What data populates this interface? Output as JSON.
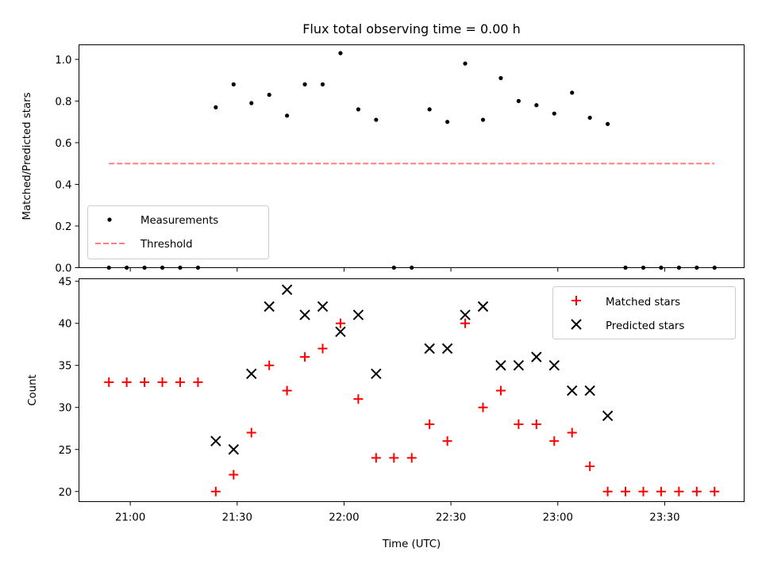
{
  "chart_data": [
    {
      "type": "scatter",
      "title": "Flux total observing time = 0.00 h",
      "xlabel": "",
      "ylabel": "Matched/Predicted stars",
      "ylim": [
        0,
        1.07
      ],
      "yticks": [
        "0.0",
        "0.2",
        "0.4",
        "0.6",
        "0.8",
        "1.0"
      ],
      "grid": false,
      "legend_position": "lower-left",
      "series": [
        {
          "name": "Measurements",
          "marker": "dot",
          "color": "#000000",
          "points": [
            [
              "20:54",
              0.0
            ],
            [
              "20:59",
              0.0
            ],
            [
              "21:04",
              0.0
            ],
            [
              "21:09",
              0.0
            ],
            [
              "21:14",
              0.0
            ],
            [
              "21:19",
              0.0
            ],
            [
              "21:24",
              0.77
            ],
            [
              "21:29",
              0.88
            ],
            [
              "21:34",
              0.79
            ],
            [
              "21:39",
              0.83
            ],
            [
              "21:44",
              0.73
            ],
            [
              "21:49",
              0.88
            ],
            [
              "21:54",
              0.88
            ],
            [
              "21:59",
              1.03
            ],
            [
              "22:04",
              0.76
            ],
            [
              "22:09",
              0.71
            ],
            [
              "22:14",
              0.0
            ],
            [
              "22:19",
              0.0
            ],
            [
              "22:24",
              0.76
            ],
            [
              "22:29",
              0.7
            ],
            [
              "22:34",
              0.98
            ],
            [
              "22:39",
              0.71
            ],
            [
              "22:44",
              0.91
            ],
            [
              "22:49",
              0.8
            ],
            [
              "22:54",
              0.78
            ],
            [
              "22:59",
              0.74
            ],
            [
              "23:04",
              0.84
            ],
            [
              "23:09",
              0.72
            ],
            [
              "23:14",
              0.69
            ],
            [
              "23:19",
              0.0
            ],
            [
              "23:24",
              0.0
            ],
            [
              "23:29",
              0.0
            ],
            [
              "23:34",
              0.0
            ],
            [
              "23:39",
              0.0
            ],
            [
              "23:44",
              0.0
            ]
          ]
        },
        {
          "name": "Threshold",
          "type": "line",
          "style": "dashed",
          "color": "#ff7f7f",
          "points": [
            [
              "20:54",
              0.5
            ],
            [
              "23:44",
              0.5
            ]
          ]
        }
      ]
    },
    {
      "type": "scatter",
      "title": "",
      "xlabel": "Time (UTC)",
      "ylabel": "Count",
      "ylim": [
        18.8,
        45.3
      ],
      "yticks": [
        "20",
        "25",
        "30",
        "35",
        "40",
        "45"
      ],
      "xticks": [
        "21:00",
        "21:30",
        "22:00",
        "22:30",
        "23:00",
        "23:30"
      ],
      "grid": false,
      "legend_position": "top-right",
      "series": [
        {
          "name": "Matched stars",
          "marker": "plus",
          "color": "#ff0000",
          "points": [
            [
              "20:54",
              33
            ],
            [
              "20:59",
              33
            ],
            [
              "21:04",
              33
            ],
            [
              "21:09",
              33
            ],
            [
              "21:14",
              33
            ],
            [
              "21:19",
              33
            ],
            [
              "21:24",
              20
            ],
            [
              "21:29",
              22
            ],
            [
              "21:34",
              27
            ],
            [
              "21:39",
              35
            ],
            [
              "21:44",
              32
            ],
            [
              "21:49",
              36
            ],
            [
              "21:54",
              37
            ],
            [
              "21:59",
              40
            ],
            [
              "22:04",
              31
            ],
            [
              "22:09",
              24
            ],
            [
              "22:14",
              24
            ],
            [
              "22:19",
              24
            ],
            [
              "22:24",
              28
            ],
            [
              "22:29",
              26
            ],
            [
              "22:34",
              40
            ],
            [
              "22:39",
              30
            ],
            [
              "22:44",
              32
            ],
            [
              "22:49",
              28
            ],
            [
              "22:54",
              28
            ],
            [
              "22:59",
              26
            ],
            [
              "23:04",
              27
            ],
            [
              "23:09",
              23
            ],
            [
              "23:14",
              20
            ],
            [
              "23:19",
              20
            ],
            [
              "23:24",
              20
            ],
            [
              "23:29",
              20
            ],
            [
              "23:34",
              20
            ],
            [
              "23:39",
              20
            ],
            [
              "23:44",
              20
            ]
          ]
        },
        {
          "name": "Predicted stars",
          "marker": "x",
          "color": "#000000",
          "points": [
            [
              "21:24",
              26
            ],
            [
              "21:29",
              25
            ],
            [
              "21:34",
              34
            ],
            [
              "21:39",
              42
            ],
            [
              "21:44",
              44
            ],
            [
              "21:49",
              41
            ],
            [
              "21:54",
              42
            ],
            [
              "21:59",
              39
            ],
            [
              "22:04",
              41
            ],
            [
              "22:09",
              34
            ],
            [
              "22:24",
              37
            ],
            [
              "22:29",
              37
            ],
            [
              "22:34",
              41
            ],
            [
              "22:39",
              42
            ],
            [
              "22:44",
              35
            ],
            [
              "22:49",
              35
            ],
            [
              "22:54",
              36
            ],
            [
              "22:59",
              35
            ],
            [
              "23:04",
              32
            ],
            [
              "23:09",
              32
            ],
            [
              "23:14",
              29
            ]
          ]
        }
      ]
    }
  ]
}
